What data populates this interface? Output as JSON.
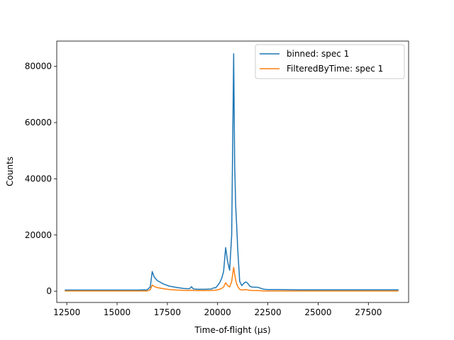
{
  "chart_data": {
    "type": "line",
    "xlabel": "Time-of-flight (μs)",
    "ylabel": "Counts",
    "xlim": [
      12000,
      29500
    ],
    "ylim": [
      -4000,
      89000
    ],
    "xticks": [
      12500,
      15000,
      17500,
      20000,
      22500,
      25000,
      27500
    ],
    "yticks": [
      0,
      20000,
      40000,
      60000,
      80000
    ],
    "legend_position": "top-right",
    "series": [
      {
        "name": "binned: spec 1",
        "color": "#1f77b4",
        "x": [
          12400,
          13000,
          14000,
          15000,
          16000,
          16500,
          16650,
          16750,
          16850,
          17000,
          17300,
          17600,
          18000,
          18300,
          18600,
          18700,
          18800,
          19000,
          19400,
          19700,
          19800,
          19900,
          20000,
          20100,
          20200,
          20300,
          20400,
          20500,
          20600,
          20700,
          20800,
          20850,
          20900,
          20950,
          21000,
          21100,
          21200,
          21300,
          21400,
          21500,
          21600,
          21700,
          22000,
          22300,
          22500,
          23000,
          24000,
          25000,
          26000,
          27000,
          28000,
          29000
        ],
        "y": [
          400,
          400,
          400,
          400,
          400,
          500,
          1500,
          7000,
          5000,
          3800,
          2600,
          1800,
          1300,
          1000,
          900,
          1600,
          800,
          700,
          700,
          800,
          1200,
          1200,
          2000,
          3000,
          4500,
          7000,
          15500,
          10500,
          7500,
          20000,
          84500,
          45000,
          30000,
          23000,
          15000,
          3500,
          2000,
          2800,
          3300,
          2800,
          1800,
          1500,
          1400,
          700,
          600,
          600,
          500,
          500,
          500,
          500,
          500,
          500
        ]
      },
      {
        "name": "FilteredByTime: spec 1",
        "color": "#ff7f0e",
        "x": [
          12400,
          13000,
          14000,
          15000,
          16000,
          16500,
          16650,
          16750,
          16850,
          17000,
          17300,
          17600,
          18000,
          18300,
          18600,
          18700,
          18800,
          19000,
          19400,
          19700,
          19800,
          19900,
          20000,
          20100,
          20200,
          20300,
          20400,
          20500,
          20600,
          20700,
          20800,
          20850,
          20900,
          20950,
          21000,
          21100,
          21200,
          21300,
          21400,
          21500,
          21600,
          21700,
          22000,
          22300,
          22500,
          23000,
          24000,
          25000,
          26000,
          27000,
          28000,
          29000
        ],
        "y": [
          80,
          80,
          80,
          80,
          80,
          100,
          500,
          2200,
          1700,
          1300,
          900,
          600,
          400,
          300,
          250,
          350,
          250,
          200,
          200,
          250,
          300,
          350,
          500,
          700,
          1000,
          1500,
          3000,
          2000,
          1500,
          3500,
          8500,
          6000,
          4000,
          2500,
          1700,
          700,
          400,
          500,
          550,
          450,
          300,
          250,
          200,
          120,
          100,
          100,
          80,
          80,
          80,
          80,
          80,
          80
        ]
      }
    ]
  }
}
